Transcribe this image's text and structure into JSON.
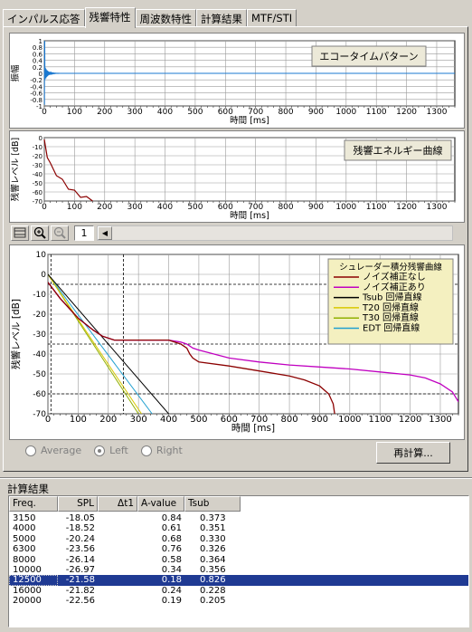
{
  "tabs": [
    "インパルス応答",
    "残響特性",
    "周波数特性",
    "計算結果",
    "MTF/STI"
  ],
  "active_tab": 1,
  "colors": {
    "blue": "#1a78d0",
    "darkred": "#8b0000",
    "magenta": "#c000c0",
    "black": "#000000",
    "yellow": "#d8c800",
    "olive": "#90b000",
    "cyan": "#20a0d0"
  },
  "chart_data": [
    {
      "type": "line",
      "title": "エコータイムパターン",
      "xlabel": "時間 [ms]",
      "ylabel": "振幅",
      "xlim": [
        0,
        1360
      ],
      "xticks": [
        0,
        100,
        200,
        300,
        400,
        500,
        600,
        700,
        800,
        900,
        1000,
        1100,
        1200,
        1300
      ],
      "ylim": [
        -1,
        1
      ],
      "yticks": [
        "1",
        "0.8",
        "0.6",
        "0.4",
        "0.2",
        "0",
        "-0.2",
        "-0.4",
        "-0.6",
        "-0.8",
        "-1"
      ],
      "series": [
        {
          "color": "#1a78d0",
          "values": []
        }
      ]
    },
    {
      "type": "line",
      "title": "残響エネルギー曲線",
      "xlabel": "時間 [ms]",
      "ylabel": "残響レベル [dB]",
      "xlim": [
        0,
        1360
      ],
      "xticks": [
        0,
        100,
        200,
        300,
        400,
        500,
        600,
        700,
        800,
        900,
        1000,
        1100,
        1200,
        1300
      ],
      "ylim": [
        -70,
        0
      ],
      "yticks": [
        0,
        -10,
        -20,
        -30,
        -40,
        -50,
        -60,
        -70
      ],
      "series": [
        {
          "color": "#8b0000",
          "x": [
            0,
            10,
            20,
            40,
            60,
            80,
            100,
            120,
            140,
            160
          ],
          "y": [
            -2,
            -20,
            -30,
            -40,
            -48,
            -55,
            -60,
            -64,
            -67,
            -70
          ]
        }
      ]
    },
    {
      "type": "line",
      "title": "シュレーダー積分残響曲線",
      "xlabel": "時間 [ms]",
      "ylabel": "残響レベル [dB]",
      "xlim": [
        0,
        1360
      ],
      "xticks": [
        0,
        100,
        200,
        300,
        400,
        500,
        600,
        700,
        800,
        900,
        1000,
        1100,
        1200,
        1300
      ],
      "ylim": [
        -70,
        10
      ],
      "yticks": [
        10,
        0,
        -10,
        -20,
        -30,
        -40,
        -50,
        -60,
        -70
      ],
      "series": [
        {
          "name": "ノイズ補正なし",
          "color": "#8b0000",
          "x": [
            0,
            40,
            100,
            150,
            180,
            220,
            260,
            300,
            350,
            400,
            440,
            460,
            470,
            480,
            500,
            600,
            700,
            800,
            850,
            900,
            930,
            945,
            950
          ],
          "y": [
            -4,
            -12,
            -22,
            -28,
            -31,
            -33,
            -33,
            -33,
            -33,
            -33,
            -35,
            -37,
            -40,
            -42,
            -44,
            -46,
            -48.5,
            -51,
            -53,
            -56,
            -60,
            -65,
            -70
          ]
        },
        {
          "name": "ノイズ補正あり",
          "color": "#c000c0",
          "x": [
            0,
            40,
            100,
            150,
            180,
            220,
            260,
            300,
            350,
            400,
            440,
            460,
            470,
            480,
            500,
            600,
            700,
            800,
            900,
            1000,
            1100,
            1200,
            1250,
            1300,
            1340,
            1360
          ],
          "y": [
            -4,
            -12,
            -22,
            -28,
            -31,
            -33,
            -33,
            -33,
            -33,
            -33,
            -34,
            -35,
            -36,
            -37,
            -38,
            -42,
            -44,
            -45.5,
            -46.5,
            -47.5,
            -49,
            -50.5,
            -52,
            -55,
            -59,
            -64
          ]
        },
        {
          "name": "Tsub 回帰直線",
          "color": "#000000",
          "x": [
            0,
            400
          ],
          "y": [
            0,
            -70
          ]
        },
        {
          "name": "T20 回帰直線",
          "color": "#d8c800",
          "x": [
            0,
            310
          ],
          "y": [
            0,
            -70
          ]
        },
        {
          "name": "T30 回帰直線",
          "color": "#90b000",
          "x": [
            0,
            300
          ],
          "y": [
            0,
            -70
          ]
        },
        {
          "name": "EDT 回帰直線",
          "color": "#20a0d0",
          "x": [
            0,
            345
          ],
          "y": [
            0,
            -70
          ]
        }
      ],
      "ref_lines": {
        "dashed_y": [
          -5,
          -35,
          -60
        ],
        "dashed_x": [
          10,
          250
        ]
      }
    }
  ],
  "toolbar": {
    "page": "1"
  },
  "radios": {
    "options": [
      "Average",
      "Left",
      "Right"
    ],
    "selected": "Left"
  },
  "recalc_label": "再計算...",
  "results": {
    "title": "計算結果",
    "headers": [
      "Freq.",
      "SPL",
      "Δt1",
      "A-value",
      "Tsub"
    ],
    "rows": [
      [
        "3150",
        "-18.05",
        "",
        "0.84",
        "0.373"
      ],
      [
        "4000",
        "-18.52",
        "",
        "0.61",
        "0.351"
      ],
      [
        "5000",
        "-20.24",
        "",
        "0.68",
        "0.330"
      ],
      [
        "6300",
        "-23.56",
        "",
        "0.76",
        "0.326"
      ],
      [
        "8000",
        "-26.14",
        "",
        "0.58",
        "0.364"
      ],
      [
        "10000",
        "-26.97",
        "",
        "0.34",
        "0.356"
      ],
      [
        "12500",
        "-21.58",
        "",
        "0.18",
        "0.826"
      ],
      [
        "16000",
        "-21.82",
        "",
        "0.24",
        "0.228"
      ],
      [
        "20000",
        "-22.56",
        "",
        "0.19",
        "0.205"
      ]
    ],
    "selected_row": 6
  }
}
